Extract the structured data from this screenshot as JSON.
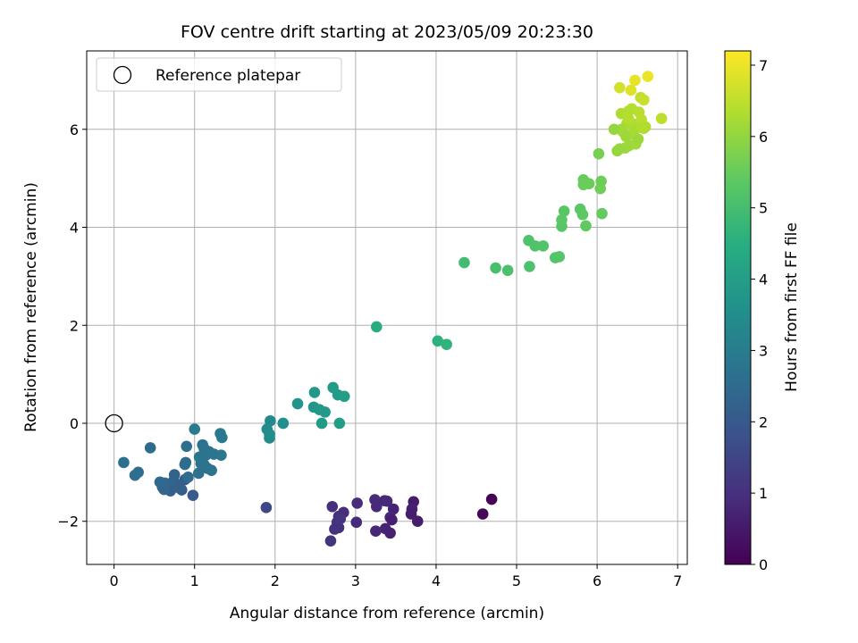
{
  "chart_data": {
    "type": "scatter",
    "title": "FOV centre drift starting at 2023/05/09 20:23:30",
    "xlabel": "Angular distance from reference (arcmin)",
    "ylabel": "Rotation from reference (arcmin)",
    "xlim": [
      -0.34,
      7.12
    ],
    "ylim": [
      -2.88,
      7.6
    ],
    "xticks": [
      0,
      1,
      2,
      3,
      4,
      5,
      6,
      7
    ],
    "yticks": [
      -2,
      0,
      2,
      4,
      6
    ],
    "grid": true,
    "legend": {
      "position": "top-left",
      "label": "Reference platepar"
    },
    "reference_point": {
      "x": 0,
      "y": 0
    },
    "colorbar": {
      "label": "Hours from first FF file",
      "range": [
        0,
        7.2
      ],
      "ticks": [
        0,
        1,
        2,
        3,
        4,
        5,
        6,
        7
      ],
      "colormap": "viridis"
    },
    "x": [
      4.69,
      4.58,
      3.72,
      3.77,
      3.7,
      3.47,
      3.36,
      3.43,
      3.26,
      3.02,
      2.85,
      2.79,
      2.71,
      3.45,
      3.43,
      3.37,
      3.25,
      3.39,
      3.01,
      2.79,
      2.74,
      2.69,
      2.77,
      2.81,
      3.69,
      3.24,
      1.89,
      0.98,
      0.84,
      0.8,
      0.76,
      0.74,
      0.71,
      0.69,
      0.66,
      0.63,
      0.6,
      0.57,
      0.75,
      0.81,
      0.88,
      0.7,
      0.62,
      0.45,
      0.3,
      0.26,
      0.12,
      0.89,
      0.9,
      0.92,
      1.08,
      1.1,
      1.12,
      1.14,
      1.16,
      1.18,
      1.05,
      1.21,
      1.33,
      1.34,
      1.32,
      1.24,
      1.06,
      1.0,
      1.12,
      0.88,
      1.94,
      1.9,
      1.93,
      2.1,
      2.28,
      2.49,
      2.48,
      2.55,
      2.62,
      2.72,
      2.78,
      2.86,
      2.8,
      2.58,
      1.93,
      3.26,
      4.02,
      4.13,
      4.35,
      4.74,
      4.89,
      5.15,
      5.23,
      5.16,
      5.33,
      5.53,
      5.48,
      5.56,
      5.59,
      5.56,
      5.79,
      5.83,
      5.82,
      5.9,
      6.04,
      6.05,
      6.06,
      6.02,
      5.86,
      5.83,
      6.25,
      6.28,
      6.3,
      6.35,
      6.4,
      6.44,
      6.43,
      6.39,
      6.32,
      6.37,
      6.48,
      6.52,
      6.54,
      6.58,
      6.47,
      6.3,
      6.39,
      6.46,
      6.51,
      6.6,
      6.36,
      6.21,
      6.58,
      6.55,
      6.56,
      6.63,
      6.8,
      6.28,
      6.42,
      6.47
    ],
    "y": [
      -1.55,
      -1.85,
      -1.6,
      -2.0,
      -1.75,
      -1.75,
      -1.58,
      -1.92,
      -1.7,
      -1.63,
      -1.82,
      -1.9,
      -1.7,
      -1.97,
      -2.24,
      -2.15,
      -2.2,
      -1.59,
      -2.02,
      -2.13,
      -2.16,
      -2.4,
      -2.02,
      -1.95,
      -1.85,
      -1.56,
      -1.72,
      -1.47,
      -1.36,
      -1.3,
      -1.24,
      -1.17,
      -1.28,
      -1.35,
      -1.32,
      -1.22,
      -1.3,
      -1.2,
      -1.05,
      -1.32,
      -1.15,
      -1.38,
      -1.35,
      -0.5,
      -1.0,
      -1.06,
      -0.8,
      -0.8,
      -0.47,
      -1.1,
      -0.82,
      -0.44,
      -0.52,
      -0.65,
      -0.92,
      -0.58,
      -1.02,
      -0.96,
      -0.65,
      -0.29,
      -0.21,
      -0.63,
      -0.69,
      -0.12,
      -0.85,
      -0.84,
      0.05,
      -0.12,
      -0.3,
      0.0,
      0.4,
      0.63,
      0.33,
      0.28,
      0.23,
      0.73,
      0.58,
      0.55,
      0.0,
      0.0,
      -0.22,
      1.97,
      1.68,
      1.61,
      3.28,
      3.17,
      3.12,
      3.73,
      3.62,
      3.2,
      3.62,
      3.4,
      3.38,
      4.02,
      4.33,
      4.15,
      4.37,
      4.97,
      4.26,
      4.89,
      4.79,
      4.94,
      4.28,
      5.5,
      4.03,
      4.87,
      5.56,
      5.6,
      6.32,
      5.62,
      5.67,
      5.9,
      6.42,
      6.37,
      5.95,
      6.12,
      5.7,
      6.35,
      6.65,
      6.02,
      6.1,
      6.0,
      6.22,
      5.97,
      5.8,
      6.05,
      5.85,
      6.0,
      6.6,
      6.2,
      6.03,
      7.08,
      6.22,
      6.85,
      6.8,
      7.0
    ],
    "color_values": [
      0.05,
      0.12,
      0.55,
      0.6,
      0.65,
      0.7,
      0.75,
      0.8,
      0.85,
      0.9,
      0.92,
      0.95,
      0.98,
      0.62,
      0.68,
      0.72,
      0.78,
      0.82,
      0.88,
      1.0,
      1.05,
      1.1,
      1.02,
      1.08,
      0.58,
      0.86,
      1.55,
      2.05,
      2.1,
      2.15,
      2.2,
      2.25,
      2.3,
      2.32,
      2.35,
      2.38,
      2.4,
      2.42,
      2.28,
      2.18,
      2.12,
      2.22,
      2.36,
      2.5,
      2.55,
      2.58,
      2.6,
      2.48,
      2.62,
      2.52,
      2.65,
      2.7,
      2.72,
      2.75,
      2.68,
      2.78,
      2.66,
      2.8,
      2.85,
      2.9,
      2.92,
      2.82,
      2.76,
      2.95,
      2.74,
      2.56,
      3.4,
      3.45,
      3.42,
      3.55,
      3.7,
      3.8,
      3.75,
      3.82,
      3.85,
      3.9,
      3.92,
      3.95,
      3.98,
      3.88,
      3.5,
      4.4,
      4.6,
      4.65,
      4.95,
      5.05,
      5.1,
      5.15,
      5.18,
      5.12,
      5.2,
      5.25,
      5.22,
      5.28,
      5.3,
      5.32,
      5.35,
      5.5,
      5.38,
      5.55,
      5.6,
      5.58,
      5.45,
      5.7,
      5.42,
      5.52,
      6.0,
      6.05,
      6.3,
      6.08,
      6.1,
      6.2,
      6.4,
      6.35,
      6.22,
      6.25,
      6.15,
      6.42,
      6.55,
      6.28,
      6.32,
      6.18,
      6.38,
      6.26,
      6.12,
      6.3,
      6.14,
      6.02,
      6.6,
      6.45,
      6.34,
      7.0,
      6.48,
      6.7,
      6.85,
      6.95
    ]
  }
}
